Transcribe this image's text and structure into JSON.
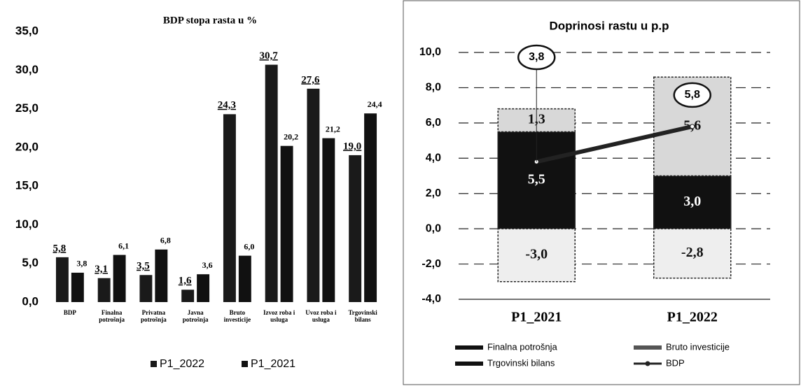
{
  "chart_data": [
    {
      "type": "bar",
      "title": "BDP stopa rasta u %",
      "categories": [
        "BDP",
        "Finalna potrošnja",
        "Privatna potrošnja",
        "Javna potrošnja",
        "Bruto investicije",
        "Izvoz roba i usluga",
        "Uvoz roba i usluga",
        "Trgovinski bilans"
      ],
      "series": [
        {
          "name": "P1_2022",
          "color": "#1a1a1a",
          "values": [
            5.8,
            3.1,
            3.5,
            1.6,
            24.3,
            30.7,
            27.6,
            19.0
          ],
          "value_labels": [
            "5,8",
            "3,1",
            "3,5",
            "1,6",
            "24,3",
            "30,7",
            "27,6",
            "19,0"
          ]
        },
        {
          "name": "P1_2021",
          "color": "#111111",
          "values": [
            3.8,
            6.1,
            6.8,
            3.6,
            6.0,
            20.2,
            21.2,
            24.4
          ],
          "value_labels": [
            "3,8",
            "6,1",
            "6,8",
            "3,6",
            "6,0",
            "20,2",
            "21,2",
            "24,4"
          ]
        }
      ],
      "ylim": [
        0,
        35
      ],
      "yticks": [
        {
          "value": 0,
          "label": "0,0"
        },
        {
          "value": 5,
          "label": "5,0"
        },
        {
          "value": 10,
          "label": "10,0"
        },
        {
          "value": 15,
          "label": "15,0"
        },
        {
          "value": 20,
          "label": "20,0"
        },
        {
          "value": 25,
          "label": "25,0"
        },
        {
          "value": 30,
          "label": "30,0"
        },
        {
          "value": 35,
          "label": "35,0"
        }
      ],
      "legend": "bottom"
    },
    {
      "type": "stacked_bar",
      "title": "Doprinosi rastu u p.p",
      "categories": [
        "P1_2021",
        "P1_2022"
      ],
      "series": [
        {
          "name": "Finalna potrošnja",
          "color": "#111111",
          "values": [
            5.5,
            3.0
          ],
          "value_labels": [
            "5,5",
            "3,0"
          ]
        },
        {
          "name": "Bruto investicije",
          "color": "#d8d8d8",
          "values": [
            1.3,
            5.6
          ],
          "value_labels": [
            "1,3",
            "5,6"
          ]
        },
        {
          "name": "Trgovinski bilans",
          "color": "#eeeeee",
          "values": [
            -3.0,
            -2.8
          ],
          "value_labels": [
            "-3,0",
            "-2,8"
          ]
        },
        {
          "name": "BDP",
          "color": "#222222",
          "type": "line",
          "values": [
            3.8,
            5.8
          ],
          "value_labels": [
            "3,8",
            "5,8"
          ]
        }
      ],
      "ylim": [
        -4,
        10
      ],
      "yticks": [
        {
          "value": -4,
          "label": "-4,0"
        },
        {
          "value": -2,
          "label": "-2,0"
        },
        {
          "value": 0,
          "label": "0,0"
        },
        {
          "value": 2,
          "label": "2,0"
        },
        {
          "value": 4,
          "label": "4,0"
        },
        {
          "value": 6,
          "label": "6,0"
        },
        {
          "value": 8,
          "label": "8,0"
        },
        {
          "value": 10,
          "label": "10,0"
        }
      ],
      "grid": true,
      "legend": "bottom"
    }
  ]
}
